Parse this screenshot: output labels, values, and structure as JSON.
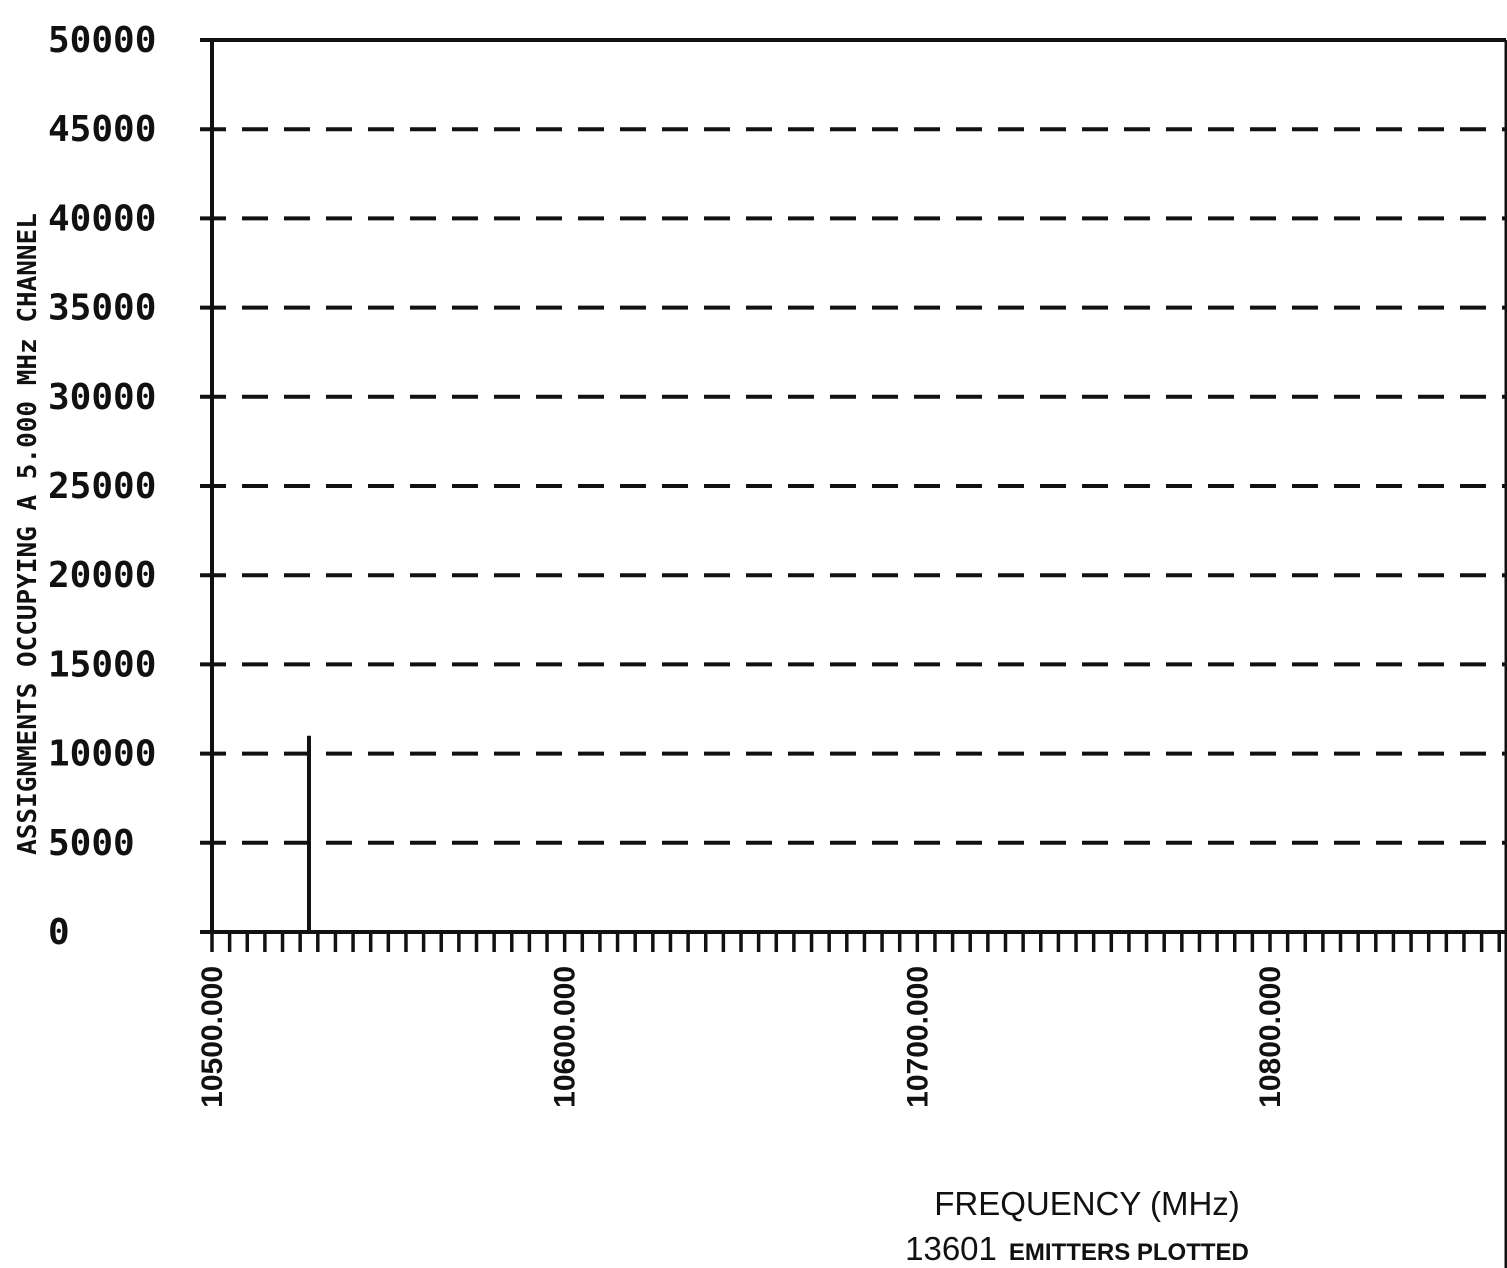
{
  "chart_data": {
    "type": "bar",
    "title": "",
    "xlabel": "FREQUENCY (MHz)",
    "ylabel": "ASSIGNMENTS OCCUPYING A 5.000 MHz CHANNEL",
    "caption_count": "13601",
    "caption_text": "EMITTERS PLOTTED",
    "xlim": [
      10500,
      10900
    ],
    "ylim": [
      0,
      50000
    ],
    "grid": true,
    "yticks": [
      0,
      5000,
      10000,
      15000,
      20000,
      25000,
      30000,
      35000,
      40000,
      45000,
      50000
    ],
    "ytick_labels": [
      "0",
      "5000",
      "10000",
      "15000",
      "20000",
      "25000",
      "30000",
      "35000",
      "40000",
      "45000",
      "50000"
    ],
    "xticks": [
      10500,
      10600,
      10700,
      10800
    ],
    "xtick_labels": [
      "10500.000",
      "10600.000",
      "10700.000",
      "10800.000"
    ],
    "channel_width_mhz": 5,
    "bars": [
      {
        "x": 10527.5,
        "value": 11000
      }
    ]
  }
}
